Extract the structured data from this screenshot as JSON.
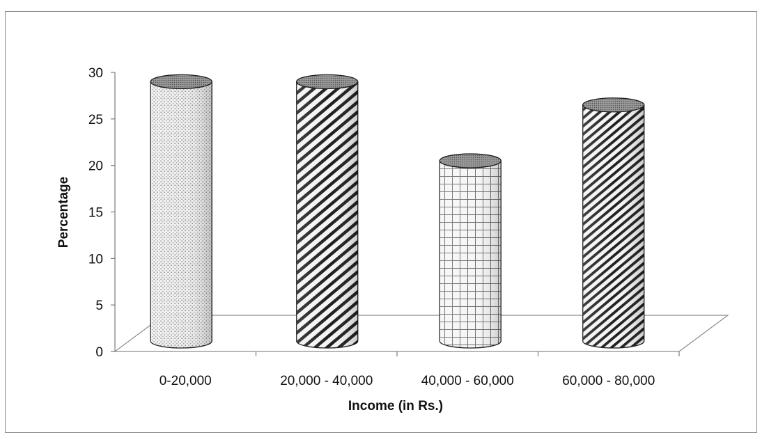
{
  "chart_data": {
    "type": "bar",
    "style": "3d-cylinder",
    "categories": [
      "0-20,000",
      "20,000 - 40,000",
      "40,000 - 60,000",
      "60,000 - 80,000"
    ],
    "series": [
      {
        "values": [
          29,
          29,
          20.5,
          26.5
        ]
      }
    ],
    "patterns": [
      "dots",
      "diagonal-stripes",
      "grid",
      "diagonal-stripes-fine"
    ],
    "xlabel": "Income (in Rs.)",
    "ylabel": "Percentage",
    "ylim": [
      0,
      30
    ],
    "yticks": [
      0,
      5,
      10,
      15,
      20,
      25,
      30
    ],
    "grid": false,
    "legend": "none"
  }
}
